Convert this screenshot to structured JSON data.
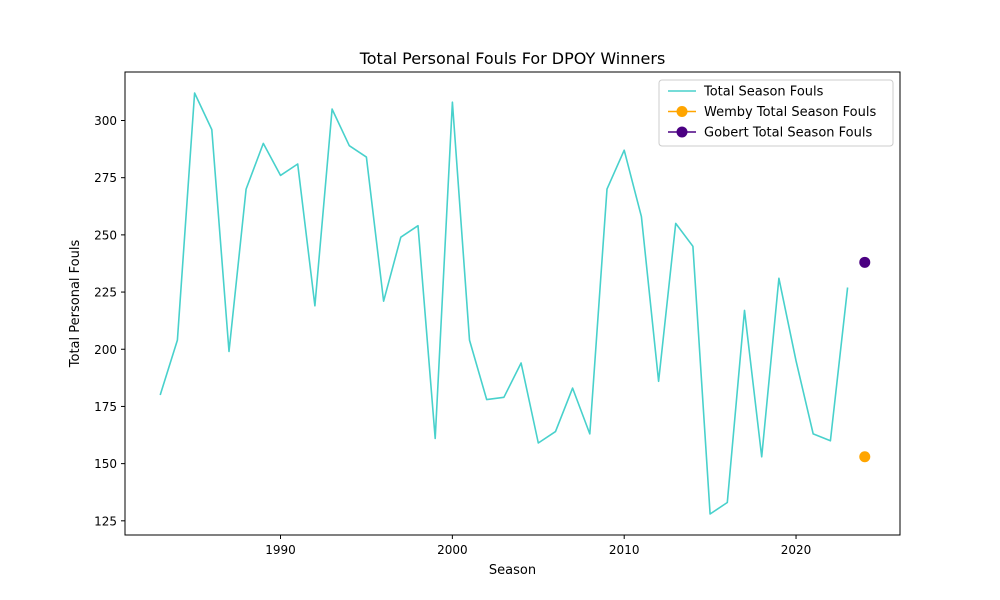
{
  "chart_data": {
    "type": "line",
    "title": "Total Personal Fouls For DPOY Winners",
    "xlabel": "Season",
    "ylabel": "Total Personal Fouls",
    "xlim": [
      1980.95,
      2026.05
    ],
    "ylim": [
      118.8,
      321.2
    ],
    "xticks": [
      1990,
      2000,
      2010,
      2020
    ],
    "yticks": [
      125,
      150,
      175,
      200,
      225,
      250,
      275,
      300
    ],
    "grid": false,
    "legend_position": "top-right",
    "series": [
      {
        "name": "Total Season Fouls",
        "style": "line",
        "color": "#48D1CC",
        "x": [
          1983,
          1984,
          1985,
          1986,
          1987,
          1988,
          1989,
          1990,
          1991,
          1992,
          1993,
          1994,
          1995,
          1996,
          1997,
          1998,
          1999,
          2000,
          2001,
          2002,
          2003,
          2004,
          2005,
          2006,
          2007,
          2008,
          2009,
          2010,
          2011,
          2012,
          2013,
          2014,
          2015,
          2016,
          2017,
          2018,
          2019,
          2020,
          2021,
          2022,
          2023
        ],
        "y": [
          180,
          204,
          312,
          296,
          199,
          270,
          290,
          276,
          281,
          219,
          305,
          289,
          284,
          221,
          249,
          254,
          161,
          308,
          204,
          178,
          179,
          194,
          159,
          164,
          183,
          163,
          270,
          287,
          258,
          186,
          255,
          245,
          128,
          133,
          217,
          153,
          231,
          195,
          163,
          160,
          227
        ]
      },
      {
        "name": "Wemby Total Season Fouls",
        "style": "marker",
        "color": "#FFA500",
        "x": [
          2024
        ],
        "y": [
          153
        ]
      },
      {
        "name": "Gobert Total Season Fouls",
        "style": "marker",
        "color": "#4B0082",
        "x": [
          2024
        ],
        "y": [
          238
        ]
      }
    ]
  }
}
